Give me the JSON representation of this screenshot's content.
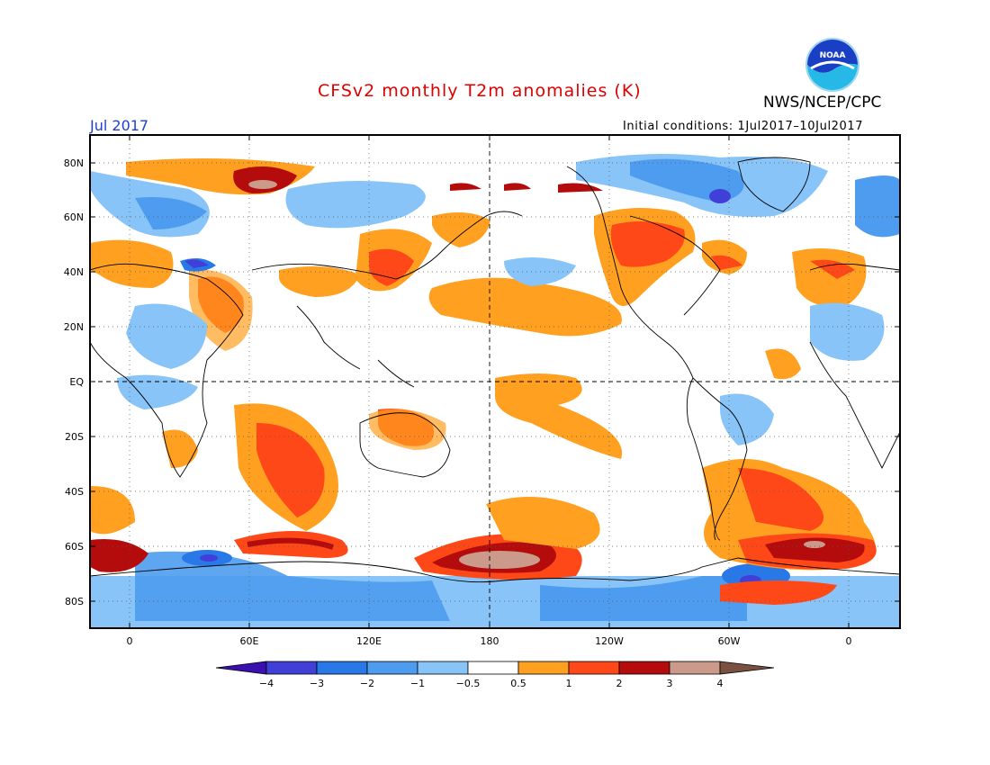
{
  "title": "CFSv2 monthly T2m anomalies (K)",
  "agency": "NWS/NCEP/CPC",
  "month": "Jul 2017",
  "initial_conditions": "Initial conditions: 1Jul2017–10Jul2017",
  "logo_text": "NOAA",
  "lat_labels": [
    "80N",
    "60N",
    "40N",
    "20N",
    "EQ",
    "20S",
    "40S",
    "60S",
    "80S"
  ],
  "lon_labels": [
    "0",
    "60E",
    "120E",
    "180",
    "120W",
    "60W",
    "0"
  ],
  "colorbar": {
    "labels": [
      "−4",
      "−3",
      "−2",
      "−1",
      "−0.5",
      "0.5",
      "1",
      "2",
      "3",
      "4"
    ],
    "colors": [
      "#3a10b0",
      "#4040d8",
      "#2878e8",
      "#4e9cf0",
      "#88c4f8",
      "#ffffff",
      "#ffa020",
      "#ff4818",
      "#b40c0c",
      "#cc9a8a",
      "#7a5040"
    ]
  },
  "colors": {
    "title": "#e00000",
    "month": "#1f3fd6",
    "warm1": "#ffa020",
    "warm2": "#ff4818",
    "warm3": "#b40c0c",
    "warm4": "#cc9a8a",
    "cool1": "#88c4f8",
    "cool2": "#4e9cf0",
    "cool3": "#2878e8",
    "cool4": "#4040d8"
  }
}
